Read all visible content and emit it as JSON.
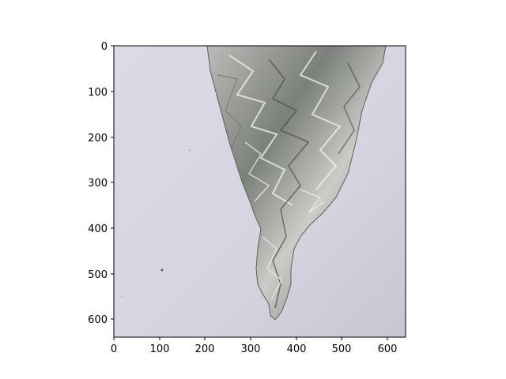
{
  "figure": {
    "image_description_icon": "crumpled-aluminum-foil-photo",
    "x_ticks": [
      "0",
      "100",
      "200",
      "300",
      "400",
      "500",
      "600"
    ],
    "y_ticks": [
      "0",
      "100",
      "200",
      "300",
      "400",
      "500",
      "600"
    ],
    "x_range": [
      0,
      640
    ],
    "y_range": [
      0,
      640
    ],
    "y_inverted": true
  },
  "colors": {
    "background": "#d5d3df",
    "foil_dark": "#5e625c",
    "foil_mid": "#9a9d98",
    "foil_light": "#e2e4e0",
    "axis": "#000000"
  }
}
